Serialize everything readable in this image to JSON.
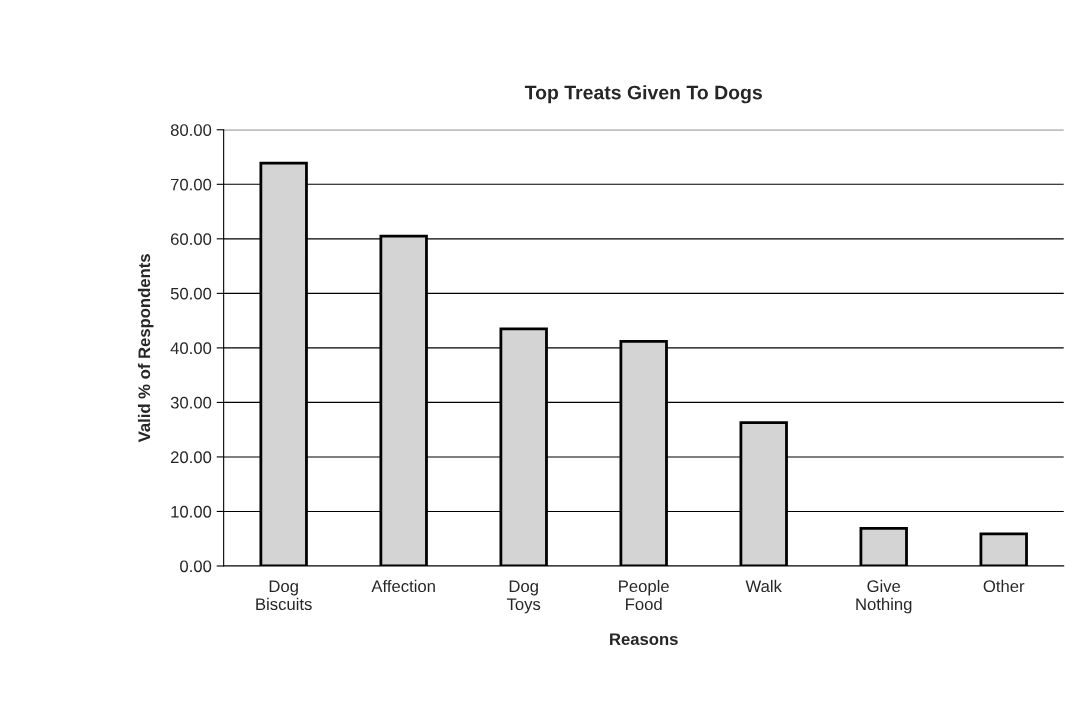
{
  "chart_data": {
    "type": "bar",
    "title": "Top Treats Given To Dogs",
    "xlabel": "Reasons",
    "ylabel": "Valid % of Respondents",
    "categories": [
      "Dog\nBiscuits",
      "Affection",
      "Dog\nToys",
      "People\nFood",
      "Walk",
      "Give\nNothing",
      "Other"
    ],
    "values": [
      73.9,
      60.5,
      43.5,
      41.2,
      26.3,
      6.9,
      5.9
    ],
    "color": "#d4d4d4",
    "ylim": [
      0,
      80
    ],
    "yticks": [
      {
        "value": 0,
        "label": "0.00"
      },
      {
        "value": 10,
        "label": "10.00"
      },
      {
        "value": 20,
        "label": "20.00"
      },
      {
        "value": 30,
        "label": "30.00"
      },
      {
        "value": 40,
        "label": "40.00"
      },
      {
        "value": 50,
        "label": "50.00"
      },
      {
        "value": 60,
        "label": "60.00"
      },
      {
        "value": 70,
        "label": "70.00"
      },
      {
        "value": 80,
        "label": "80.00"
      }
    ],
    "grid": "y"
  }
}
